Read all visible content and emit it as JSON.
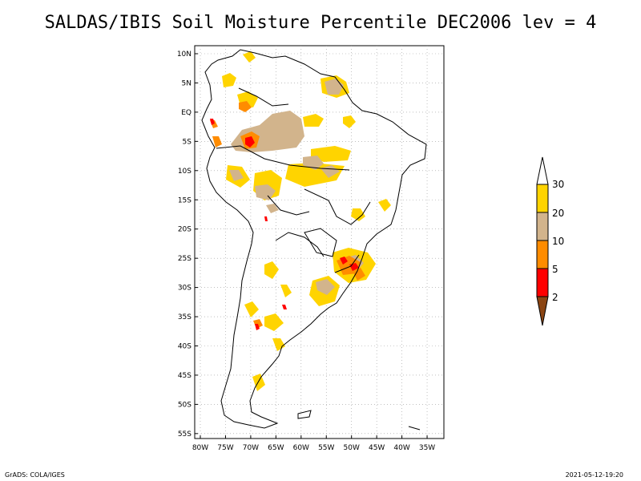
{
  "title": "SALDAS/IBIS Soil Moisture Percentile DEC2006 lev = 4",
  "footer_left": "GrADS: COLA/IGES",
  "footer_right": "2021-05-12-19:20",
  "lat_labels": [
    "10N",
    "5N",
    "EQ",
    "5S",
    "10S",
    "15S",
    "20S",
    "25S",
    "30S",
    "35S",
    "40S",
    "45S",
    "50S",
    "55S"
  ],
  "lon_labels": [
    "80W",
    "75W",
    "70W",
    "65W",
    "60W",
    "55W",
    "50W",
    "45W",
    "40W",
    "35W"
  ],
  "legend": {
    "labels": [
      "30",
      "20",
      "10",
      "5",
      "2"
    ],
    "colors": {
      "above_30": "#ffffff",
      "c20_30": "#ffd400",
      "c10_20": "#d2b48c",
      "c5_10": "#ff8c00",
      "c2_5": "#ff0000",
      "below_2": "#8b4513"
    }
  }
}
